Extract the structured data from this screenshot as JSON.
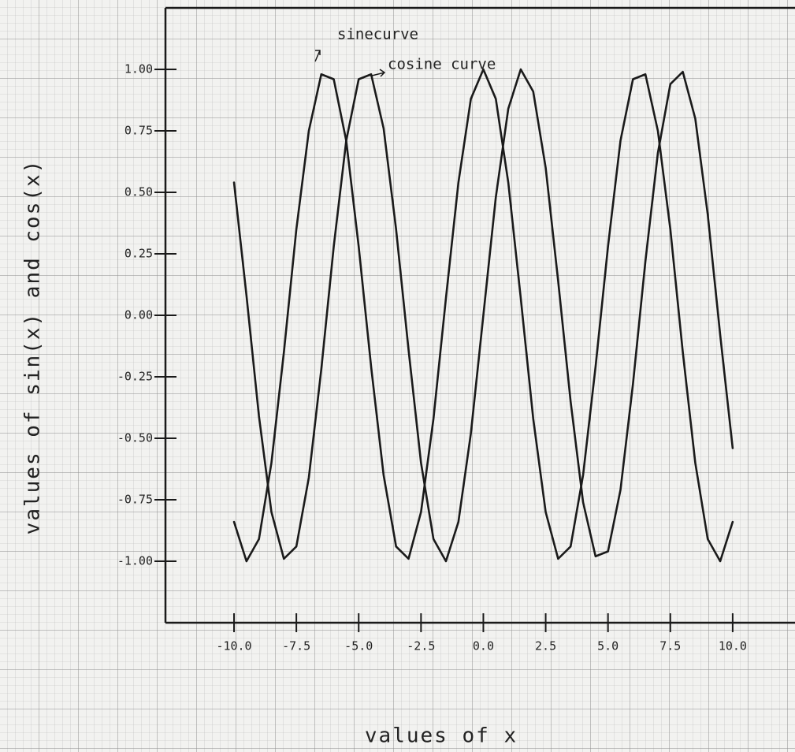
{
  "chart_data": {
    "type": "line",
    "xlabel": "values of x",
    "ylabel": "values of sin(x) and cos(x)",
    "x": [
      -10,
      -9.5,
      -9,
      -8.5,
      -8,
      -7.5,
      -7,
      -6.5,
      -6,
      -5.5,
      -5,
      -4.5,
      -4,
      -3.5,
      -3,
      -2.5,
      -2,
      -1.5,
      -1,
      -0.5,
      0,
      0.5,
      1,
      1.5,
      2,
      2.5,
      3,
      3.5,
      4,
      4.5,
      5,
      5.5,
      6,
      6.5,
      7,
      7.5,
      8,
      8.5,
      9,
      9.5,
      10
    ],
    "series": [
      {
        "name": "sinecurve",
        "color": "#1a1a1a",
        "values": [
          0.54,
          0.08,
          -0.41,
          -0.8,
          -0.99,
          -0.94,
          -0.66,
          -0.22,
          0.28,
          0.71,
          0.96,
          0.98,
          0.76,
          0.35,
          -0.14,
          -0.6,
          -0.91,
          -1.0,
          -0.84,
          -0.48,
          0,
          0.48,
          0.84,
          1.0,
          0.91,
          0.6,
          0.14,
          -0.35,
          -0.76,
          -0.98,
          -0.96,
          -0.71,
          -0.28,
          0.22,
          0.66,
          0.94,
          0.99,
          0.8,
          0.41,
          -0.08,
          -0.54
        ]
      },
      {
        "name": "cosine curve",
        "color": "#1a1a1a",
        "values": [
          -0.84,
          -1.0,
          -0.91,
          -0.6,
          -0.15,
          0.35,
          0.75,
          0.98,
          0.96,
          0.71,
          0.28,
          -0.21,
          -0.65,
          -0.94,
          -0.99,
          -0.8,
          -0.42,
          0.07,
          0.54,
          0.88,
          1,
          0.88,
          0.54,
          0.07,
          -0.42,
          -0.8,
          -0.99,
          -0.94,
          -0.65,
          -0.21,
          0.28,
          0.71,
          0.96,
          0.98,
          0.75,
          0.35,
          -0.15,
          -0.6,
          -0.91,
          -1.0,
          -0.84
        ]
      }
    ],
    "xlim": [
      -12.75,
      12.5
    ],
    "ylim": [
      -1.25,
      1.25
    ],
    "xticks": [
      {
        "value": -10,
        "label": "-10.0"
      },
      {
        "value": -7.5,
        "label": "-7.5"
      },
      {
        "value": -5,
        "label": "-5.0"
      },
      {
        "value": -2.5,
        "label": "-2.5"
      },
      {
        "value": 0,
        "label": "0.0"
      },
      {
        "value": 2.5,
        "label": "2.5"
      },
      {
        "value": 5,
        "label": "5.0"
      },
      {
        "value": 7.5,
        "label": "7.5"
      },
      {
        "value": 10,
        "label": "10.0"
      }
    ],
    "yticks": [
      {
        "value": 1,
        "label": "1.00"
      },
      {
        "value": 0.75,
        "label": "0.75"
      },
      {
        "value": 0.5,
        "label": "0.50"
      },
      {
        "value": 0.25,
        "label": "0.25"
      },
      {
        "value": 0,
        "label": "0.00"
      },
      {
        "value": -0.25,
        "label": "-0.25"
      },
      {
        "value": -0.5,
        "label": "-0.50"
      },
      {
        "value": -0.75,
        "label": "-0.75"
      },
      {
        "value": -1,
        "label": "-1.00"
      }
    ]
  }
}
